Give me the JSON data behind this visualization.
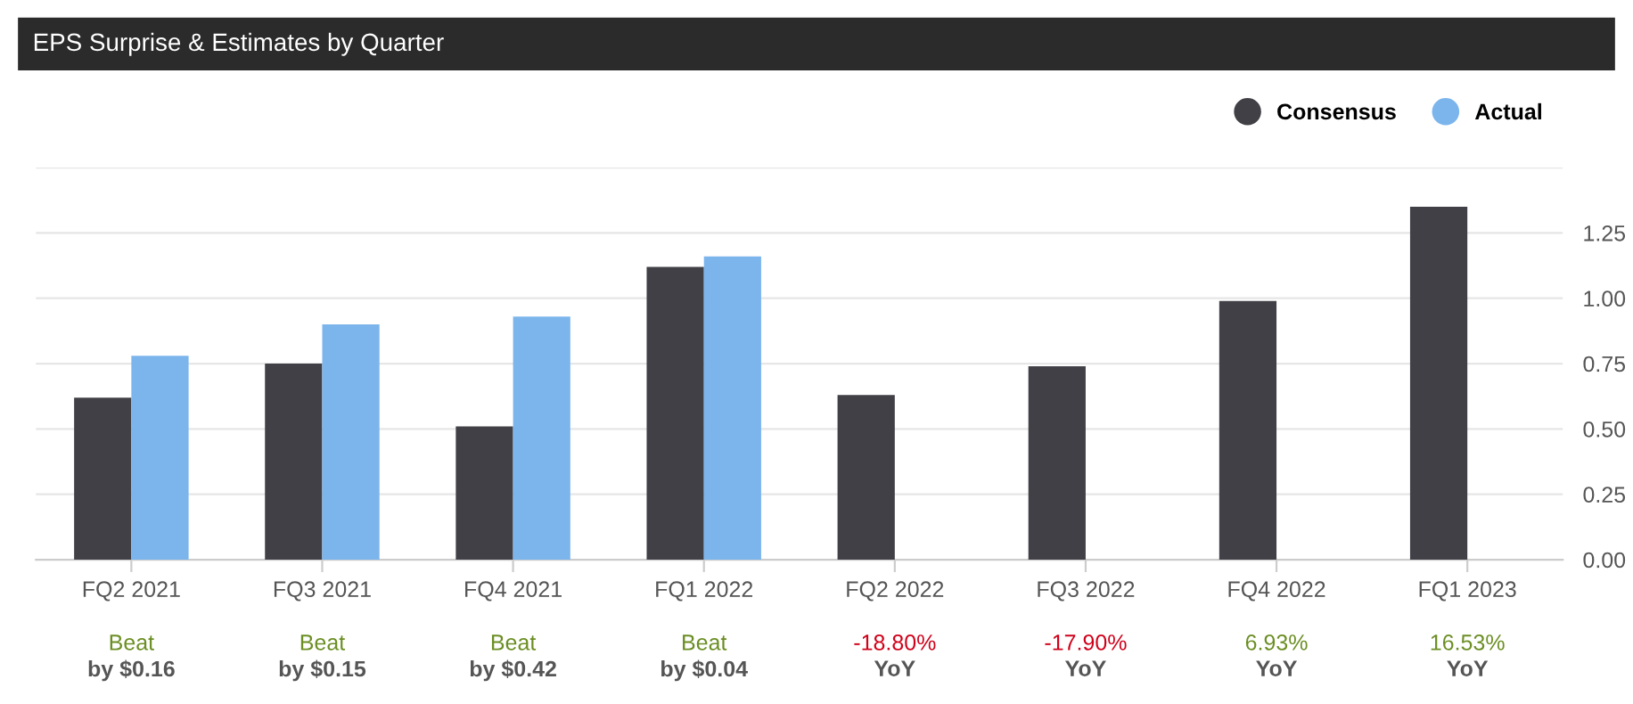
{
  "chart_data": {
    "type": "bar",
    "title": "EPS Surprise & Estimates by Quarter",
    "categories": [
      "FQ2 2021",
      "FQ3 2021",
      "FQ4 2021",
      "FQ1 2022",
      "FQ2 2022",
      "FQ3 2022",
      "FQ4 2022",
      "FQ1 2023"
    ],
    "series": [
      {
        "name": "Consensus",
        "color": "#414046",
        "values": [
          0.62,
          0.75,
          0.51,
          1.12,
          0.63,
          0.74,
          0.99,
          1.35
        ]
      },
      {
        "name": "Actual",
        "color": "#7cb5ec",
        "values": [
          0.78,
          0.9,
          0.93,
          1.16,
          null,
          null,
          null,
          null
        ]
      }
    ],
    "ylim": [
      0,
      1.5
    ],
    "yticks": [
      {
        "value": 0,
        "label": "0.00"
      },
      0.25,
      {
        "value": 0.5,
        "label": "0.50"
      },
      0.75,
      {
        "value": 1,
        "label": "1.00"
      },
      1.25,
      {
        "value": 1.5,
        "label": null
      }
    ],
    "grid": "y",
    "legend": "top right",
    "annotations": [
      "Beat",
      "by $0.16",
      "Beat",
      "by $0.15",
      "Beat",
      "by $0.42",
      "Beat",
      "by $0.04",
      "-18.80%",
      "YoY",
      "-17.90%",
      "YoY",
      "6.93%",
      "YoY",
      "16.53%",
      "YoY"
    ]
  }
}
